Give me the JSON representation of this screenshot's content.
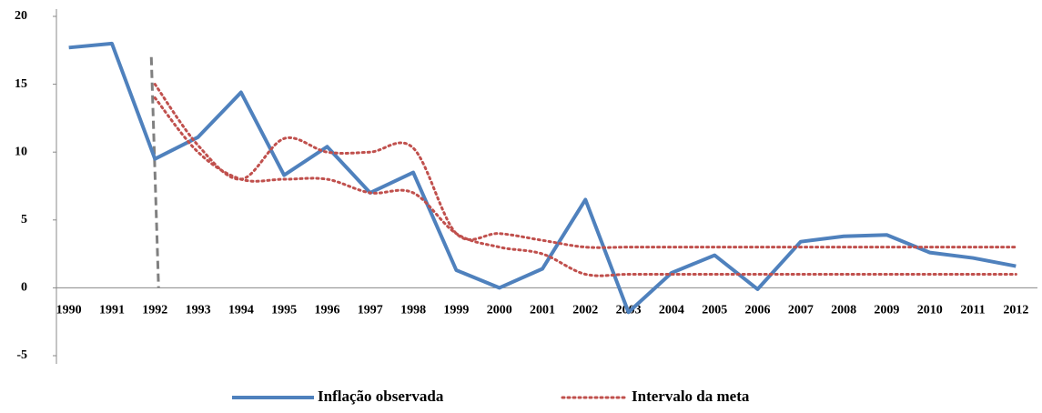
{
  "chart_data": {
    "type": "line",
    "categories": [
      "1990",
      "1991",
      "1992",
      "1993",
      "1994",
      "1995",
      "1996",
      "1997",
      "1998",
      "1999",
      "2000",
      "2001",
      "2002",
      "2003",
      "2004",
      "2005",
      "2006",
      "2007",
      "2008",
      "2009",
      "2010",
      "2011",
      "2012"
    ],
    "series": [
      {
        "name": "Inflação observada",
        "color": "#4f81bd",
        "style": "solid",
        "values": [
          17.7,
          18.0,
          9.5,
          11.1,
          14.4,
          8.3,
          10.4,
          7.0,
          8.5,
          1.3,
          0.0,
          1.4,
          6.5,
          -1.8,
          1.1,
          2.4,
          -0.1,
          3.4,
          3.8,
          3.9,
          2.6,
          2.2,
          1.6
        ]
      },
      {
        "name": "Intervalo da meta",
        "color": "#c0504d",
        "style": "dotted",
        "smooth": true,
        "values": [
          null,
          null,
          15,
          10.5,
          8,
          11,
          10,
          10,
          10.3,
          4,
          4,
          3.5,
          3,
          3,
          3,
          3,
          3,
          3,
          3,
          3,
          3,
          3,
          3
        ]
      },
      {
        "color": "#c0504d",
        "style": "dotted",
        "smooth": true,
        "values": [
          null,
          null,
          14,
          10,
          8,
          8,
          8,
          7,
          7,
          4,
          3,
          2.5,
          1,
          1,
          1,
          1,
          1,
          1,
          1,
          1,
          1,
          1,
          1
        ]
      }
    ],
    "reference_line": {
      "x": "1992",
      "from": 0,
      "to": 17,
      "color": "#808080"
    },
    "ylim": [
      -5,
      20
    ],
    "yticks": [
      -5,
      0,
      5,
      10,
      15,
      20
    ],
    "grid": false,
    "legend": "bottom"
  }
}
